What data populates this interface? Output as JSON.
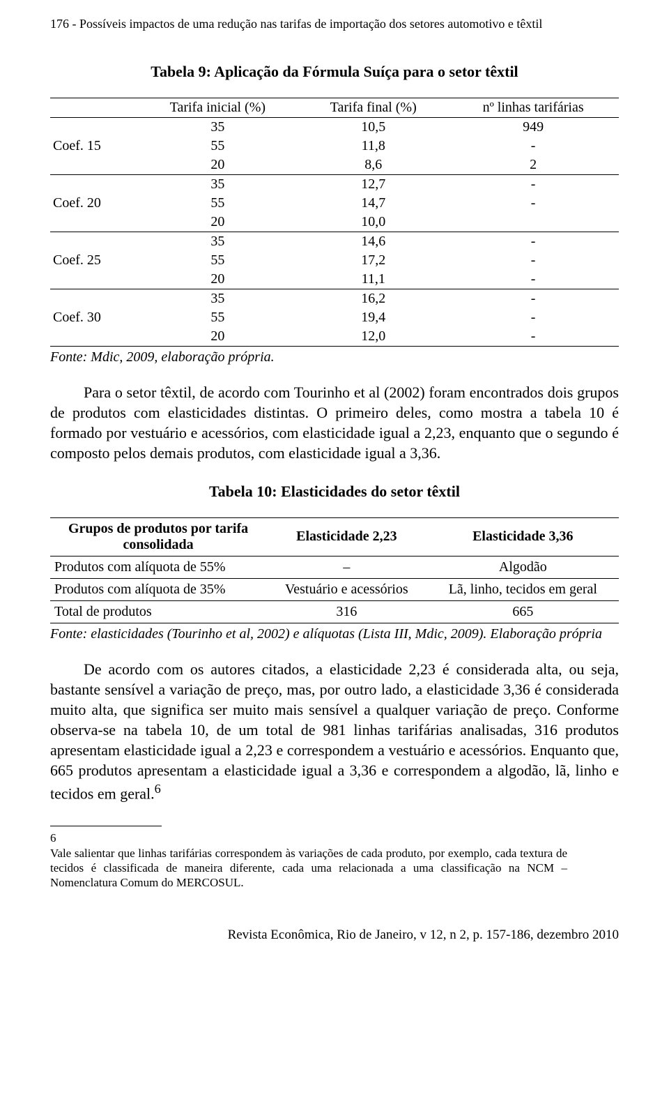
{
  "header": {
    "running": "176  -  Possíveis impactos de uma redução nas tarifas de importação dos setores automotivo e têxtil"
  },
  "table9": {
    "caption": "Tabela 9: Aplicação da Fórmula Suíça para o setor têxtil",
    "headers": [
      "",
      "Tarifa inicial (%)",
      "Tarifa final (%)",
      "nº linhas tarifárias"
    ],
    "groups": [
      {
        "label": "Coef. 15",
        "rows": [
          [
            "35",
            "10,5",
            "949"
          ],
          [
            "55",
            "11,8",
            "-"
          ],
          [
            "20",
            "8,6",
            "2"
          ]
        ]
      },
      {
        "label": "Coef. 20",
        "rows": [
          [
            "35",
            "12,7",
            "-"
          ],
          [
            "55",
            "14,7",
            "-"
          ],
          [
            "20",
            "10,0",
            ""
          ]
        ]
      },
      {
        "label": "Coef. 25",
        "rows": [
          [
            "35",
            "14,6",
            "-"
          ],
          [
            "55",
            "17,2",
            "-"
          ],
          [
            "20",
            "11,1",
            "-"
          ]
        ]
      },
      {
        "label": "Coef. 30",
        "rows": [
          [
            "35",
            "16,2",
            "-"
          ],
          [
            "55",
            "19,4",
            "-"
          ],
          [
            "20",
            "12,0",
            "-"
          ]
        ]
      }
    ],
    "source": "Fonte: Mdic, 2009, elaboração própria."
  },
  "para1": "Para o setor têxtil, de acordo com Tourinho et al (2002) foram encontrados dois grupos de produtos com elasticidades distintas. O primeiro deles, como mostra a tabela 10 é formado por vestuário e acessórios, com elasticidade igual a 2,23, enquanto que o segundo é composto pelos demais produtos, com elasticidade igual a 3,36.",
  "table10": {
    "caption": "Tabela 10: Elasticidades do setor têxtil",
    "headers": [
      "Grupos de produtos por tarifa consolidada",
      "Elasticidade 2,23",
      "Elasticidade 3,36"
    ],
    "rows": [
      [
        "Produtos com alíquota de 55%",
        "–",
        "Algodão"
      ],
      [
        "Produtos com alíquota de 35%",
        "Vestuário e acessórios",
        "Lã, linho, tecidos em geral"
      ],
      [
        "Total de produtos",
        "316",
        "665"
      ]
    ],
    "source": "Fonte: elasticidades (Tourinho et al, 2002) e alíquotas (Lista III, Mdic, 2009). Elaboração própria"
  },
  "para2": "De acordo com os autores citados, a elasticidade 2,23 é considerada alta, ou seja, bastante sensível a variação de preço, mas, por outro lado, a elasticidade 3,36 é considerada muito alta, que significa ser muito mais sensível a qualquer variação de preço. Conforme observa-se na tabela 10, de um total de 981 linhas tarifárias analisadas, 316 produtos apresentam elasticidade igual a 2,23 e correspondem a vestuário e acessórios. Enquanto que, 665 produtos apresentam a elasticidade  igual a 3,36 e correspondem a algodão, lã, linho e tecidos em geral.",
  "fn_marker": "6",
  "footnote": {
    "num": "6",
    "text": "Vale salientar que linhas tarifárias correspondem às variações de cada produto, por exemplo, cada textura de tecidos é classificada de maneira diferente, cada uma relacionada a uma classificação na NCM – Nomenclatura Comum do MERCOSUL."
  },
  "footer": {
    "text": "Revista Econômica, Rio de Janeiro, v 12, n 2, p. 157-186, dezembro 2010"
  }
}
